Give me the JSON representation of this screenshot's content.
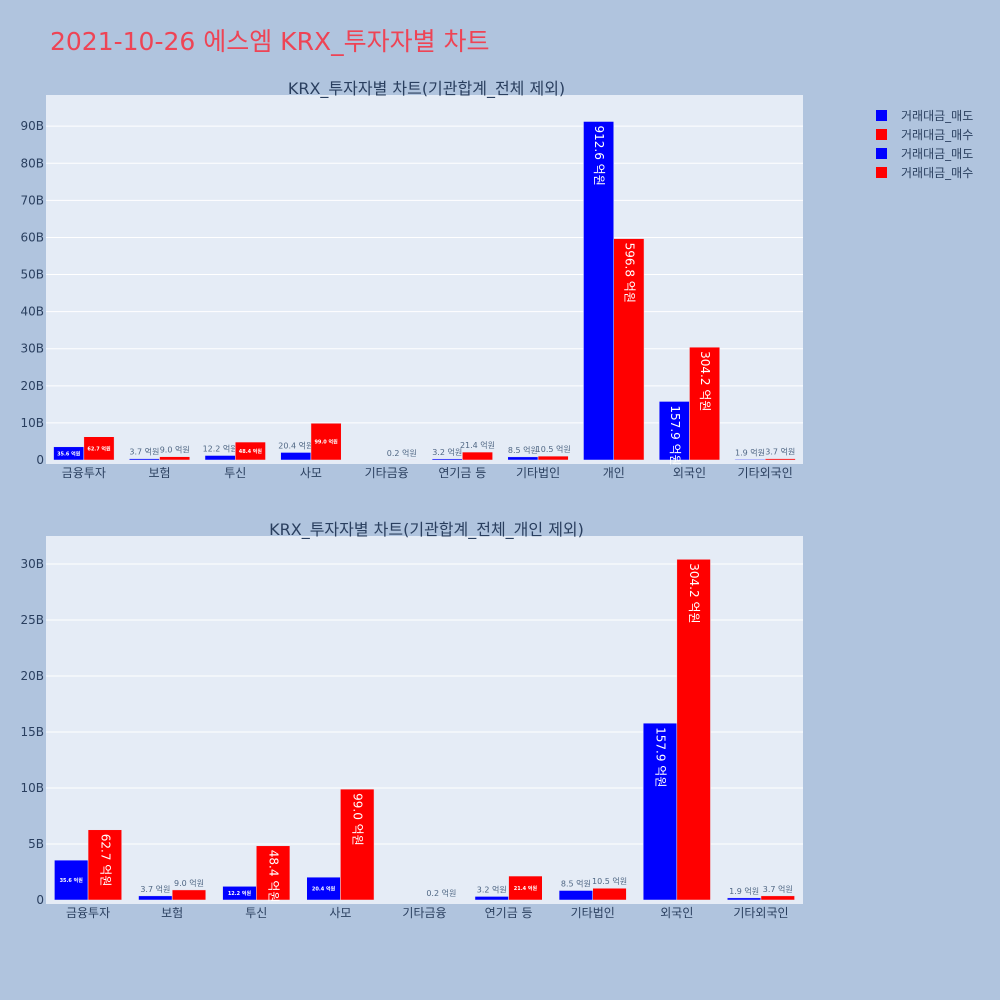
{
  "page": {
    "title": "2021-10-26 에스엠 KRX_투자자별 차트"
  },
  "legend": [
    {
      "label": "거래대금_매도",
      "color": "#0000ff"
    },
    {
      "label": "거래대금_매수",
      "color": "#ff0000"
    },
    {
      "label": "거래대금_매도",
      "color": "#0000ff"
    },
    {
      "label": "거래대금_매수",
      "color": "#ff0000"
    }
  ],
  "chart_data": [
    {
      "type": "bar",
      "title": "KRX_투자자별 차트(기관합계_전체 제외)",
      "categories": [
        "금융투자",
        "보험",
        "투신",
        "사모",
        "기타금융",
        "연기금 등",
        "기타법인",
        "개인",
        "외국인",
        "기타외국인"
      ],
      "series": [
        {
          "name": "거래대금_매도",
          "color": "#0000ff",
          "values": [
            3.56,
            0.37,
            1.22,
            2.04,
            0,
            0.32,
            0.85,
            91.26,
            15.79,
            0.19
          ],
          "labels": [
            "35.6 억원",
            "3.7 억원",
            "12.2 억원",
            "20.4 억원",
            "",
            "3.2 억원",
            "8.5 억원",
            "912.6 억원",
            "157.9 억원",
            "1.9 억원"
          ]
        },
        {
          "name": "거래대금_매수",
          "color": "#ff0000",
          "values": [
            6.27,
            0.9,
            4.84,
            9.9,
            0.02,
            2.14,
            1.05,
            59.68,
            30.42,
            0.37
          ],
          "labels": [
            "62.7 억원",
            "9.0 억원",
            "48.4 억원",
            "99.0 억원",
            "0.2 억원",
            "21.4 억원",
            "10.5 억원",
            "596.8 억원",
            "304.2 억원",
            "3.7 억원"
          ]
        }
      ],
      "y_ticks": [
        "0",
        "10B",
        "20B",
        "30B",
        "40B",
        "50B",
        "60B",
        "70B",
        "80B",
        "90B"
      ],
      "ylim": [
        0,
        98.4
      ],
      "grid": true
    },
    {
      "type": "bar",
      "title": "KRX_투자자별 차트(기관합계_전체_개인 제외)",
      "categories": [
        "금융투자",
        "보험",
        "투신",
        "사모",
        "기타금융",
        "연기금 등",
        "기타법인",
        "외국인",
        "기타외국인"
      ],
      "series": [
        {
          "name": "거래대금_매도",
          "color": "#0000ff",
          "values": [
            3.56,
            0.37,
            1.22,
            2.04,
            0,
            0.32,
            0.85,
            15.79,
            0.19
          ],
          "labels": [
            "35.6 억원",
            "3.7 억원",
            "12.2 억원",
            "20.4 억원",
            "",
            "3.2 억원",
            "8.5 억원",
            "157.9 억원",
            "1.9 억원"
          ]
        },
        {
          "name": "거래대금_매수",
          "color": "#ff0000",
          "values": [
            6.27,
            0.9,
            4.84,
            9.9,
            0.02,
            2.14,
            1.05,
            30.42,
            0.37
          ],
          "labels": [
            "62.7 억원",
            "9.0 억원",
            "48.4 억원",
            "99.0 억원",
            "0.2 억원",
            "21.4 억원",
            "10.5 억원",
            "304.2 억원",
            "3.7 억원"
          ]
        }
      ],
      "y_ticks": [
        "0",
        "5B",
        "10B",
        "15B",
        "20B",
        "25B",
        "30B"
      ],
      "ylim": [
        0,
        32.5
      ],
      "grid": true
    }
  ]
}
